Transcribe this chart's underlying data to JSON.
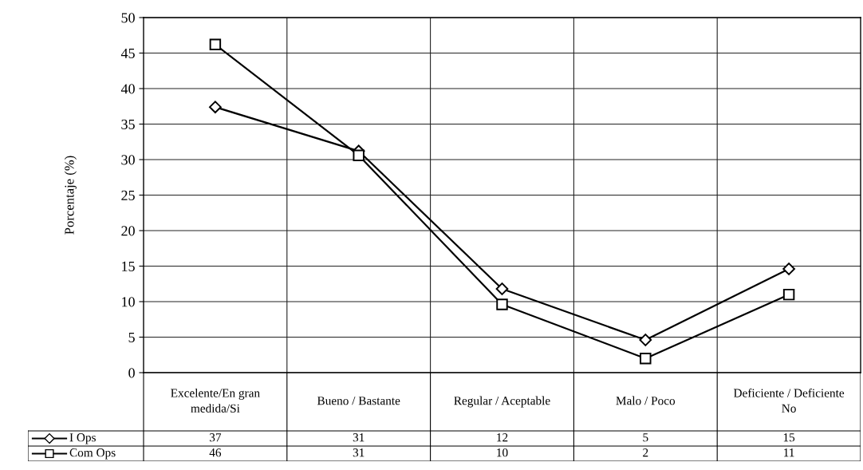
{
  "chart_data": {
    "type": "line",
    "ylabel": "Porcentaje (%)",
    "categories": [
      "Excelente/En gran\nmedida/Si",
      "Bueno / Bastante",
      "Regular / Aceptable",
      "Malo / Poco",
      "Deficiente / Deficiente\nNo"
    ],
    "series": [
      {
        "name": "I Ops",
        "color": "#000000",
        "marker": "diamond",
        "values": [
          37.4,
          31.2,
          11.8,
          4.6,
          14.6
        ],
        "value_labels": [
          "37",
          "31",
          "12",
          "5",
          "15"
        ]
      },
      {
        "name": "Com Ops",
        "color": "#000000",
        "marker": "square",
        "values": [
          46.2,
          30.6,
          9.6,
          2.0,
          11.0
        ],
        "value_labels": [
          "46",
          "31",
          "10",
          "2",
          "11"
        ]
      }
    ],
    "ylim": [
      0,
      50
    ],
    "yticks": [
      0,
      5,
      10,
      15,
      20,
      25,
      30,
      35,
      40,
      45,
      50
    ],
    "grid": true,
    "legend": "bottom left",
    "line_style": "solid"
  }
}
